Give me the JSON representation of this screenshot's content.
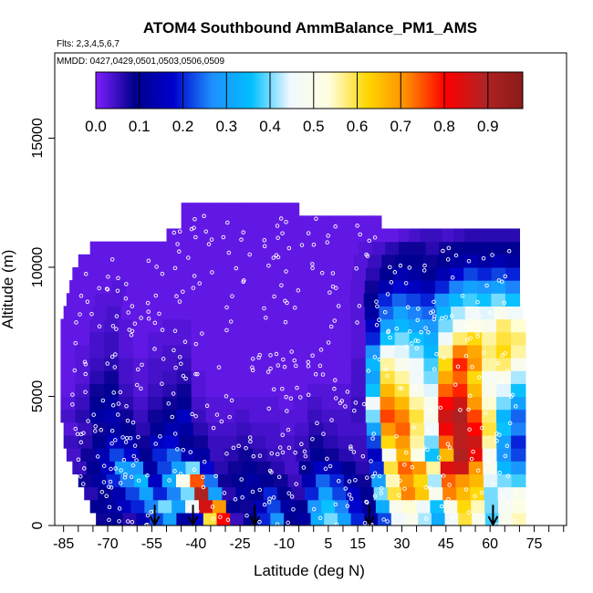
{
  "chart_data": {
    "type": "heatmap",
    "title": "ATOM4 Southbound AmmBalance_PM1_AMS",
    "flights_note": "Flts: 2,3,4,5,6,7",
    "dates_note": "MMDD: 0427,0429,0501,0503,0506,0509",
    "xlabel": "Latitude (deg N)",
    "ylabel": "Altitude (m)",
    "xlim": [
      -88,
      86
    ],
    "ylim": [
      0,
      18300
    ],
    "x_ticks": [
      -85,
      -70,
      -55,
      -40,
      -25,
      -10,
      5,
      15,
      30,
      45,
      60,
      75
    ],
    "x_tick_labels": [
      "-85",
      "-70",
      "-55",
      "-40",
      "-25",
      "-10",
      "5",
      "15",
      "30",
      "45",
      "60",
      "75"
    ],
    "x_minor_ticks": [
      -80,
      -75,
      -65,
      -60,
      -50,
      -45,
      -35,
      -30,
      -20,
      -15,
      -5,
      0,
      10,
      20,
      25,
      35,
      40,
      50,
      55,
      65,
      70,
      80,
      85
    ],
    "y_ticks": [
      0,
      5000,
      10000,
      15000
    ],
    "y_tick_labels": [
      "0",
      "5000",
      "10000",
      "15000"
    ],
    "colorbar": {
      "range": [
        0,
        0.98
      ],
      "ticks": [
        0.0,
        0.1,
        0.2,
        0.3,
        0.4,
        0.5,
        0.6,
        0.7,
        0.8,
        0.9
      ],
      "tick_labels": [
        "0.0",
        "0.1",
        "0.2",
        "0.3",
        "0.4",
        "0.5",
        "0.6",
        "0.7",
        "0.8",
        "0.9"
      ],
      "colors": [
        "#7f1fff",
        "#00008b",
        "#0000cd",
        "#1e90ff",
        "#00bfff",
        "#f0f8ff",
        "#ffffe0",
        "#ffd700",
        "#ff8c00",
        "#ff0000",
        "#b22222",
        "#8b1a1a"
      ]
    },
    "grid": false,
    "legend": "colorbar top",
    "field_description": "Gridded ammonium balance values by latitude (x) and altitude (y)",
    "rows": [
      {
        "alt": 0,
        "from": -74,
        "to": 72,
        "values": [
          0.08,
          0.1,
          0.06,
          0.14,
          0.22,
          0.3,
          0.12,
          0.18,
          0.6,
          0.8,
          0.05,
          0.1,
          0.2,
          0.28,
          0.1,
          0.12,
          0.32,
          0.4,
          0.3,
          0.2,
          0.12,
          0.22,
          0.45,
          0.5,
          0.42,
          0.32,
          0.46,
          0.6,
          0.5,
          0.38,
          0.5,
          0.55
        ]
      },
      {
        "alt": 500,
        "from": -76,
        "to": 72,
        "values": [
          0.1,
          0.12,
          0.16,
          0.2,
          0.26,
          0.4,
          0.3,
          0.45,
          0.85,
          0.7,
          0.1,
          0.08,
          0.15,
          0.22,
          0.12,
          0.1,
          0.28,
          0.36,
          0.26,
          0.18,
          0.1,
          0.32,
          0.5,
          0.54,
          0.45,
          0.36,
          0.5,
          0.62,
          0.55,
          0.4,
          0.48,
          0.52
        ]
      },
      {
        "alt": 1000,
        "from": -78,
        "to": 72,
        "values": [
          0.06,
          0.1,
          0.14,
          0.22,
          0.3,
          0.2,
          0.26,
          0.4,
          0.9,
          0.3,
          0.06,
          0.12,
          0.1,
          0.2,
          0.1,
          0.06,
          0.2,
          0.3,
          0.22,
          0.16,
          0.1,
          0.4,
          0.6,
          0.72,
          0.64,
          0.5,
          0.72,
          0.66,
          0.62,
          0.4,
          0.46,
          0.5
        ]
      },
      {
        "alt": 1500,
        "from": -80,
        "to": 72,
        "values": [
          0.08,
          0.12,
          0.2,
          0.26,
          0.34,
          0.16,
          0.32,
          0.5,
          0.75,
          0.25,
          0.08,
          0.1,
          0.12,
          0.1,
          0.08,
          0.05,
          0.14,
          0.24,
          0.2,
          0.12,
          0.08,
          0.3,
          0.55,
          0.7,
          0.62,
          0.42,
          0.74,
          0.7,
          0.66,
          0.44,
          0.4,
          0.38
        ]
      },
      {
        "alt": 2000,
        "from": -82,
        "to": 72,
        "values": [
          0.05,
          0.1,
          0.16,
          0.3,
          0.28,
          0.12,
          0.22,
          0.3,
          0.4,
          0.18,
          0.06,
          0.08,
          0.1,
          0.08,
          0.06,
          0.04,
          0.1,
          0.16,
          0.14,
          0.1,
          0.06,
          0.2,
          0.6,
          0.74,
          0.7,
          0.56,
          0.84,
          0.86,
          0.7,
          0.5,
          0.34,
          0.28
        ]
      },
      {
        "alt": 2500,
        "from": -84,
        "to": 72,
        "values": [
          0.04,
          0.08,
          0.14,
          0.22,
          0.18,
          0.1,
          0.2,
          0.24,
          0.14,
          0.12,
          0.05,
          0.06,
          0.08,
          0.06,
          0.05,
          0.04,
          0.06,
          0.1,
          0.08,
          0.06,
          0.05,
          0.16,
          0.5,
          0.66,
          0.52,
          0.36,
          0.66,
          0.9,
          0.82,
          0.48,
          0.28,
          0.22
        ]
      },
      {
        "alt": 3000,
        "from": -85,
        "to": 72,
        "values": [
          0.05,
          0.06,
          0.1,
          0.16,
          0.14,
          0.08,
          0.16,
          0.18,
          0.1,
          0.08,
          0.05,
          0.05,
          0.06,
          0.05,
          0.04,
          0.04,
          0.05,
          0.08,
          0.06,
          0.05,
          0.05,
          0.22,
          0.62,
          0.7,
          0.56,
          0.4,
          0.74,
          0.88,
          0.86,
          0.56,
          0.3,
          0.2
        ]
      },
      {
        "alt": 3500,
        "from": -85,
        "to": 72,
        "values": [
          0.03,
          0.05,
          0.08,
          0.12,
          0.1,
          0.06,
          0.1,
          0.14,
          0.12,
          0.06,
          0.04,
          0.04,
          0.05,
          0.04,
          0.04,
          0.03,
          0.04,
          0.06,
          0.05,
          0.04,
          0.04,
          0.3,
          0.7,
          0.74,
          0.58,
          0.46,
          0.82,
          0.88,
          0.8,
          0.6,
          0.36,
          0.26
        ]
      },
      {
        "alt": 4000,
        "from": -86,
        "to": 72,
        "values": [
          0.04,
          0.06,
          0.12,
          0.14,
          0.08,
          0.05,
          0.08,
          0.1,
          0.16,
          0.05,
          0.03,
          0.03,
          0.04,
          0.03,
          0.03,
          0.03,
          0.03,
          0.05,
          0.04,
          0.04,
          0.05,
          0.4,
          0.76,
          0.72,
          0.6,
          0.5,
          0.86,
          0.9,
          0.76,
          0.58,
          0.34,
          0.24
        ]
      },
      {
        "alt": 4500,
        "from": -86,
        "to": 72,
        "values": [
          0.03,
          0.05,
          0.1,
          0.12,
          0.06,
          0.04,
          0.06,
          0.08,
          0.1,
          0.04,
          0.03,
          0.03,
          0.03,
          0.03,
          0.03,
          0.02,
          0.03,
          0.04,
          0.03,
          0.03,
          0.05,
          0.46,
          0.72,
          0.66,
          0.56,
          0.5,
          0.8,
          0.86,
          0.7,
          0.54,
          0.4,
          0.3
        ]
      },
      {
        "alt": 5000,
        "from": -86,
        "to": 72,
        "values": [
          0.02,
          0.04,
          0.08,
          0.1,
          0.05,
          0.03,
          0.05,
          0.06,
          0.08,
          0.03,
          0.02,
          0.02,
          0.02,
          0.02,
          0.02,
          0.02,
          0.02,
          0.03,
          0.03,
          0.03,
          0.04,
          0.36,
          0.66,
          0.6,
          0.5,
          0.44,
          0.74,
          0.78,
          0.66,
          0.5,
          0.44,
          0.36
        ]
      },
      {
        "alt": 5500,
        "from": -86,
        "to": 72,
        "values": [
          0.02,
          0.03,
          0.06,
          0.08,
          0.04,
          0.03,
          0.04,
          0.05,
          0.06,
          0.03,
          0.02,
          0.02,
          0.02,
          0.02,
          0.02,
          0.02,
          0.02,
          0.02,
          0.02,
          0.02,
          0.04,
          0.3,
          0.6,
          0.56,
          0.46,
          0.4,
          0.68,
          0.74,
          0.62,
          0.48,
          0.5,
          0.42
        ]
      },
      {
        "alt": 6000,
        "from": -86,
        "to": 72,
        "values": [
          0.02,
          0.03,
          0.05,
          0.06,
          0.04,
          0.03,
          0.04,
          0.04,
          0.05,
          0.02,
          0.02,
          0.02,
          0.02,
          0.02,
          0.02,
          0.02,
          0.02,
          0.02,
          0.02,
          0.02,
          0.04,
          0.34,
          0.56,
          0.5,
          0.46,
          0.38,
          0.62,
          0.78,
          0.7,
          0.56,
          0.58,
          0.5
        ]
      },
      {
        "alt": 6500,
        "from": -86,
        "to": 72,
        "values": [
          0.02,
          0.03,
          0.04,
          0.05,
          0.03,
          0.02,
          0.03,
          0.04,
          0.04,
          0.02,
          0.02,
          0.02,
          0.02,
          0.02,
          0.02,
          0.02,
          0.02,
          0.02,
          0.02,
          0.02,
          0.03,
          0.28,
          0.46,
          0.44,
          0.4,
          0.34,
          0.56,
          0.72,
          0.68,
          0.58,
          0.62,
          0.56
        ]
      },
      {
        "alt": 7000,
        "from": -86,
        "to": 72,
        "values": [
          0.02,
          0.02,
          0.04,
          0.05,
          0.03,
          0.02,
          0.03,
          0.03,
          0.03,
          0.02,
          0.02,
          0.02,
          0.02,
          0.02,
          0.02,
          0.02,
          0.02,
          0.02,
          0.02,
          0.02,
          0.03,
          0.2,
          0.36,
          0.4,
          0.36,
          0.32,
          0.46,
          0.58,
          0.62,
          0.56,
          0.6,
          0.58
        ]
      },
      {
        "alt": 7500,
        "from": -86,
        "to": 72,
        "values": [
          0.02,
          0.02,
          0.03,
          0.04,
          0.03,
          0.02,
          0.02,
          0.03,
          0.03,
          0.02,
          0.02,
          0.02,
          0.02,
          0.02,
          0.02,
          0.02,
          0.02,
          0.02,
          0.02,
          0.02,
          0.03,
          0.16,
          0.3,
          0.34,
          0.3,
          0.28,
          0.4,
          0.48,
          0.52,
          0.5,
          0.58,
          0.54
        ]
      },
      {
        "alt": 8000,
        "from": -85,
        "to": 71,
        "values": [
          0.02,
          0.02,
          0.03,
          0.04,
          0.02,
          0.02,
          0.02,
          0.02,
          0.02,
          0.02,
          0.02,
          0.02,
          0.02,
          0.02,
          0.02,
          0.02,
          0.02,
          0.02,
          0.02,
          0.02,
          0.03,
          0.12,
          0.24,
          0.3,
          0.26,
          0.24,
          0.34,
          0.42,
          0.46,
          0.44,
          0.5,
          0.46
        ]
      },
      {
        "alt": 8500,
        "from": -84,
        "to": 70,
        "values": [
          0.02,
          0.02,
          0.03,
          0.03,
          0.02,
          0.02,
          0.02,
          0.02,
          0.02,
          0.02,
          0.02,
          0.02,
          0.02,
          0.02,
          0.02,
          0.02,
          0.02,
          0.02,
          0.02,
          0.02,
          0.03,
          0.1,
          0.2,
          0.24,
          0.22,
          0.2,
          0.28,
          0.34,
          0.38,
          0.36,
          0.4,
          0.36
        ]
      },
      {
        "alt": 9000,
        "from": -83,
        "to": 70,
        "values": [
          0.02,
          0.02,
          0.02,
          0.03,
          0.02,
          0.02,
          0.02,
          0.02,
          0.02,
          0.02,
          0.02,
          0.02,
          0.02,
          0.02,
          0.02,
          0.02,
          0.02,
          0.02,
          0.02,
          0.02,
          0.03,
          0.08,
          0.14,
          0.18,
          0.16,
          0.14,
          0.2,
          0.26,
          0.3,
          0.28,
          0.3,
          0.26
        ]
      },
      {
        "alt": 9500,
        "from": -82,
        "to": 70,
        "values": [
          0.02,
          0.02,
          0.02,
          0.02,
          0.02,
          0.02,
          0.02,
          0.02,
          0.02,
          0.02,
          0.02,
          0.02,
          0.02,
          0.02,
          0.02,
          0.02,
          0.02,
          0.02,
          0.02,
          0.02,
          0.03,
          0.06,
          0.1,
          0.14,
          0.12,
          0.1,
          0.14,
          0.18,
          0.22,
          0.2,
          0.22,
          0.2
        ]
      },
      {
        "alt": 10000,
        "from": -80,
        "to": 70,
        "values": [
          0.02,
          0.02,
          0.02,
          0.02,
          0.02,
          0.02,
          0.02,
          0.02,
          0.02,
          0.02,
          0.02,
          0.02,
          0.02,
          0.02,
          0.02,
          0.02,
          0.02,
          0.02,
          0.02,
          0.02,
          0.03,
          0.05,
          0.08,
          0.1,
          0.1,
          0.08,
          0.1,
          0.12,
          0.14,
          0.12,
          0.14,
          0.12
        ]
      },
      {
        "alt": 10500,
        "from": -76,
        "to": 70,
        "values": [
          0.02,
          0.02,
          0.02,
          0.02,
          0.02,
          0.02,
          0.02,
          0.02,
          0.02,
          0.02,
          0.02,
          0.02,
          0.02,
          0.02,
          0.02,
          0.02,
          0.02,
          0.02,
          0.02,
          0.02,
          0.03,
          0.04,
          0.06,
          0.08,
          0.08,
          0.06,
          0.08,
          0.1,
          0.1,
          0.1,
          0.1,
          0.1
        ]
      },
      {
        "alt": 11000,
        "from": -50,
        "to": 70,
        "values": [
          0.02,
          0.02,
          0.02,
          0.02,
          0.02,
          0.02,
          0.02,
          0.02,
          0.02,
          0.02,
          0.02,
          0.02,
          0.02,
          0.02,
          0.02,
          0.02,
          0.02,
          0.02,
          0.02,
          0.02,
          0.02,
          0.03,
          0.04,
          0.05,
          0.05,
          0.04,
          0.05,
          0.06,
          0.06,
          0.06,
          0.06,
          0.06
        ]
      },
      {
        "alt": 11500,
        "from": -45,
        "to": 23,
        "values": [
          0.02,
          0.02,
          0.02,
          0.02,
          0.02,
          0.02,
          0.02,
          0.02,
          0.02,
          0.02,
          0.02,
          0.02,
          0.02,
          0.02,
          0.02,
          0.02,
          0.02,
          0.02,
          0.02,
          0.02,
          0.02,
          0.02,
          0.02,
          0.02,
          0.02,
          0.02,
          0.02,
          0.02,
          0.02,
          0.02,
          0.02,
          0.02
        ]
      },
      {
        "alt": 12000,
        "from": -45,
        "to": -5,
        "values": [
          0.02,
          0.02,
          0.02,
          0.02,
          0.02,
          0.02,
          0.02,
          0.02,
          0.02,
          0.02,
          0.02,
          0.02,
          0.02,
          0.02,
          0.02,
          0.02,
          0.02,
          0.02,
          0.02,
          0.02,
          0.02,
          0.02,
          0.02,
          0.02,
          0.02,
          0.02,
          0.02,
          0.02,
          0.02,
          0.02,
          0.02,
          0.02
        ]
      }
    ],
    "profile_markers_lat": [
      -54,
      -41,
      -20,
      19,
      61
    ]
  }
}
